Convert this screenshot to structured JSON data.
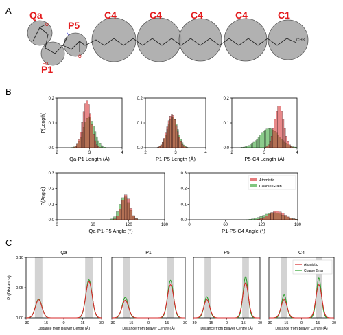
{
  "figure": {
    "panel_labels": [
      "A",
      "B",
      "C"
    ],
    "panel_a": {
      "bead_labels": [
        "Qa",
        "P5",
        "C4",
        "C4",
        "C4",
        "C4",
        "C1",
        "P1"
      ],
      "atom_labels": [
        "O",
        "N",
        "O",
        "HO",
        "CH3"
      ]
    },
    "colors": {
      "atomistic": "#d62728",
      "coarse_grain": "#2ca02c",
      "bead_label": "#e31a1c"
    }
  },
  "chart_data": [
    {
      "type": "bar",
      "panel": "B1",
      "ylabel": "P(Length)",
      "xlabel": "Qa-P1 Length (Å)",
      "xlim": [
        2,
        4
      ],
      "ylim": [
        0,
        0.2
      ],
      "xticks": [
        "2",
        "3",
        "4"
      ],
      "yticks": [
        "0.0",
        "0.1",
        "0.2"
      ],
      "series": [
        {
          "name": "Atomistic",
          "center": 2.92,
          "sd": 0.13,
          "peak": 0.19
        },
        {
          "name": "Coarse Grain",
          "center": 2.98,
          "sd": 0.17,
          "peak": 0.125
        }
      ]
    },
    {
      "type": "bar",
      "panel": "B2",
      "ylabel": "",
      "xlabel": "P1-P5 Length (Å)",
      "xlim": [
        2,
        4
      ],
      "ylim": [
        0,
        0.2
      ],
      "xticks": [
        "2",
        "3",
        "4"
      ],
      "yticks": [
        "0.0",
        "0.1",
        "0.2"
      ],
      "series": [
        {
          "name": "Atomistic",
          "center": 2.88,
          "sd": 0.16,
          "peak": 0.135
        },
        {
          "name": "Coarse Grain",
          "center": 2.9,
          "sd": 0.17,
          "peak": 0.125
        }
      ]
    },
    {
      "type": "bar",
      "panel": "B3",
      "ylabel": "",
      "xlabel": "P5-C4 Length (Å)",
      "xlim": [
        2,
        4
      ],
      "ylim": [
        0,
        0.2
      ],
      "xticks": [
        "2",
        "3",
        "4"
      ],
      "yticks": [
        "0.0",
        "0.1",
        "0.2"
      ],
      "series": [
        {
          "name": "Atomistic",
          "center": 3.45,
          "sd": 0.14,
          "peak": 0.17
        },
        {
          "name": "Coarse Grain",
          "center": 3.15,
          "sd": 0.3,
          "peak": 0.078
        }
      ]
    },
    {
      "type": "bar",
      "panel": "B4",
      "ylabel": "P(Angle)",
      "xlabel": "Qa-P1-P5 Angle (°)",
      "xlim": [
        0,
        180
      ],
      "ylim": [
        0,
        0.3
      ],
      "xticks": [
        "0",
        "60",
        "120",
        "180"
      ],
      "yticks": [
        "0.0",
        "0.1",
        "0.2",
        "0.3"
      ],
      "series": [
        {
          "name": "Atomistic",
          "center": 115,
          "sd": 7,
          "peak": 0.16
        },
        {
          "name": "Coarse Grain",
          "center": 113,
          "sd": 8,
          "peak": 0.15
        }
      ]
    },
    {
      "type": "bar",
      "panel": "B5",
      "ylabel": "",
      "xlabel": "P1-P5-C4 Angle (°)",
      "xlim": [
        0,
        180
      ],
      "ylim": [
        0,
        0.3
      ],
      "xticks": [
        "0",
        "60",
        "120",
        "180"
      ],
      "yticks": [
        "0.0",
        "0.1",
        "0.2",
        "0.3"
      ],
      "legend": {
        "position": "top-right",
        "entries": [
          "Atomistic",
          "Coarse Grain"
        ]
      },
      "series": [
        {
          "name": "Atomistic",
          "center": 145,
          "sd": 13,
          "peak": 0.055
        },
        {
          "name": "Coarse Grain",
          "center": 140,
          "sd": 17,
          "peak": 0.045
        }
      ]
    },
    {
      "type": "line",
      "panel": "C",
      "ylabel": "P (Distance)",
      "xlabel": "Distance from Bilayer Centre (Å)",
      "xlim": [
        -30,
        30
      ],
      "ylim": [
        0,
        0.1
      ],
      "xticks": [
        "−30",
        "−15",
        "0",
        "15",
        "30"
      ],
      "yticks": [
        "0.00",
        "0.05",
        "0.10"
      ],
      "legend": {
        "position": "top-right",
        "entries": [
          "Atomistic",
          "Coarse Grain"
        ]
      },
      "subplots": [
        {
          "title": "Qa",
          "shade": [
            [
              -23,
              -17
            ],
            [
              17,
              23
            ]
          ],
          "series": [
            {
              "name": "Atomistic",
              "peaks": [
                {
                  "mu": -20,
                  "sd": 2.6,
                  "h": 0.03
                },
                {
                  "mu": 20,
                  "sd": 2.6,
                  "h": 0.06
                }
              ]
            },
            {
              "name": "Coarse Grain",
              "peaks": [
                {
                  "mu": -20,
                  "sd": 2.6,
                  "h": 0.031
                },
                {
                  "mu": 20,
                  "sd": 2.5,
                  "h": 0.063
                }
              ]
            }
          ]
        },
        {
          "title": "P1",
          "shade": [
            [
              -21,
              -15
            ],
            [
              15,
              21
            ]
          ],
          "series": [
            {
              "name": "Atomistic",
              "peaks": [
                {
                  "mu": -19,
                  "sd": 2.7,
                  "h": 0.029
                },
                {
                  "mu": 18,
                  "sd": 2.6,
                  "h": 0.055
                }
              ]
            },
            {
              "name": "Coarse Grain",
              "peaks": [
                {
                  "mu": -19,
                  "sd": 2.5,
                  "h": 0.034
                },
                {
                  "mu": 18,
                  "sd": 2.4,
                  "h": 0.062
                }
              ]
            }
          ]
        },
        {
          "title": "P5",
          "shade": [
            [
              -20,
              -14
            ],
            [
              14,
              20
            ]
          ],
          "series": [
            {
              "name": "Atomistic",
              "peaks": [
                {
                  "mu": -18,
                  "sd": 2.7,
                  "h": 0.03
                },
                {
                  "mu": 17,
                  "sd": 2.6,
                  "h": 0.058
                }
              ]
            },
            {
              "name": "Coarse Grain",
              "peaks": [
                {
                  "mu": -18,
                  "sd": 2.4,
                  "h": 0.035
                },
                {
                  "mu": 17,
                  "sd": 2.3,
                  "h": 0.068
                }
              ]
            }
          ]
        },
        {
          "title": "C4",
          "shade": [
            [
              -19,
              -13
            ],
            [
              13,
              19
            ]
          ],
          "series": [
            {
              "name": "Atomistic",
              "peaks": [
                {
                  "mu": -16,
                  "sd": 2.8,
                  "h": 0.03
                },
                {
                  "mu": 16,
                  "sd": 2.7,
                  "h": 0.055
                }
              ]
            },
            {
              "name": "Coarse Grain",
              "peaks": [
                {
                  "mu": -16,
                  "sd": 2.4,
                  "h": 0.038
                },
                {
                  "mu": 16,
                  "sd": 2.3,
                  "h": 0.066
                }
              ]
            }
          ]
        }
      ]
    }
  ]
}
